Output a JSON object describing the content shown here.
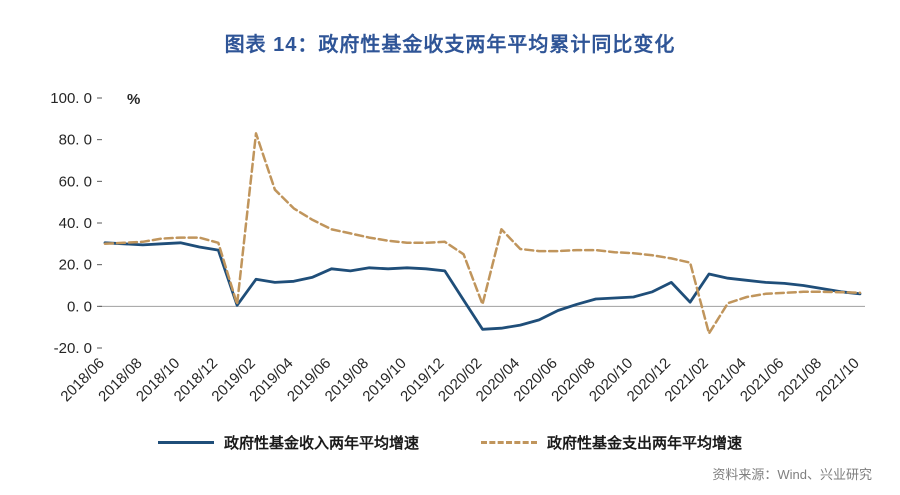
{
  "source": "资料来源：Wind、兴业研究",
  "chart_data": {
    "type": "line",
    "title": "图表 14：政府性基金收支两年平均累计同比变化",
    "unit": "%",
    "ylim": [
      -20,
      100
    ],
    "grid": false,
    "legend_position": "bottom",
    "x_label_every": 2,
    "yticks": [
      {
        "value": 100,
        "label": "100. 0"
      },
      {
        "value": 80,
        "label": "80. 0"
      },
      {
        "value": 60,
        "label": "60. 0"
      },
      {
        "value": 40,
        "label": "40. 0"
      },
      {
        "value": 20,
        "label": "20. 0"
      },
      {
        "value": 0,
        "label": "0. 0"
      },
      {
        "value": -20,
        "label": "-20. 0"
      }
    ],
    "x": [
      "2018/06",
      "2018/07",
      "2018/08",
      "2018/09",
      "2018/10",
      "2018/11",
      "2018/12",
      "2019/01",
      "2019/02",
      "2019/03",
      "2019/04",
      "2019/05",
      "2019/06",
      "2019/07",
      "2019/08",
      "2019/09",
      "2019/10",
      "2019/11",
      "2019/12",
      "2020/01",
      "2020/02",
      "2020/03",
      "2020/04",
      "2020/05",
      "2020/06",
      "2020/07",
      "2020/08",
      "2020/09",
      "2020/10",
      "2020/11",
      "2020/12",
      "2021/01",
      "2021/02",
      "2021/03",
      "2021/04",
      "2021/05",
      "2021/06",
      "2021/07",
      "2021/08",
      "2021/09",
      "2021/10"
    ],
    "series": [
      {
        "name": "政府性基金收入两年平均增速",
        "color": "#1F4E79",
        "dashed": false,
        "values": [
          30.5,
          30,
          29.5,
          30,
          30.5,
          28.5,
          27,
          0.5,
          13,
          11.5,
          12,
          14,
          18,
          17,
          18.5,
          18,
          18.5,
          18,
          17,
          3,
          -11,
          -10.5,
          -9,
          -6.5,
          -2,
          1,
          3.5,
          4,
          4.5,
          7,
          11.5,
          2,
          15.5,
          13.5,
          12.5,
          11.5,
          11,
          10,
          8.5,
          7,
          6
        ]
      },
      {
        "name": "政府性基金支出两年平均增速",
        "color": "#C0955C",
        "dashed": true,
        "values": [
          30,
          30.5,
          31,
          32.5,
          33,
          33,
          30.5,
          1,
          83,
          56,
          47,
          41.5,
          37,
          35,
          33,
          31.5,
          30.5,
          30.5,
          31,
          25,
          1,
          37,
          27.5,
          26.5,
          26.5,
          27,
          27,
          26,
          25.5,
          24.5,
          23,
          21,
          -13,
          1.5,
          4.5,
          6,
          6.5,
          7,
          7,
          6.8,
          6.5
        ]
      }
    ]
  }
}
